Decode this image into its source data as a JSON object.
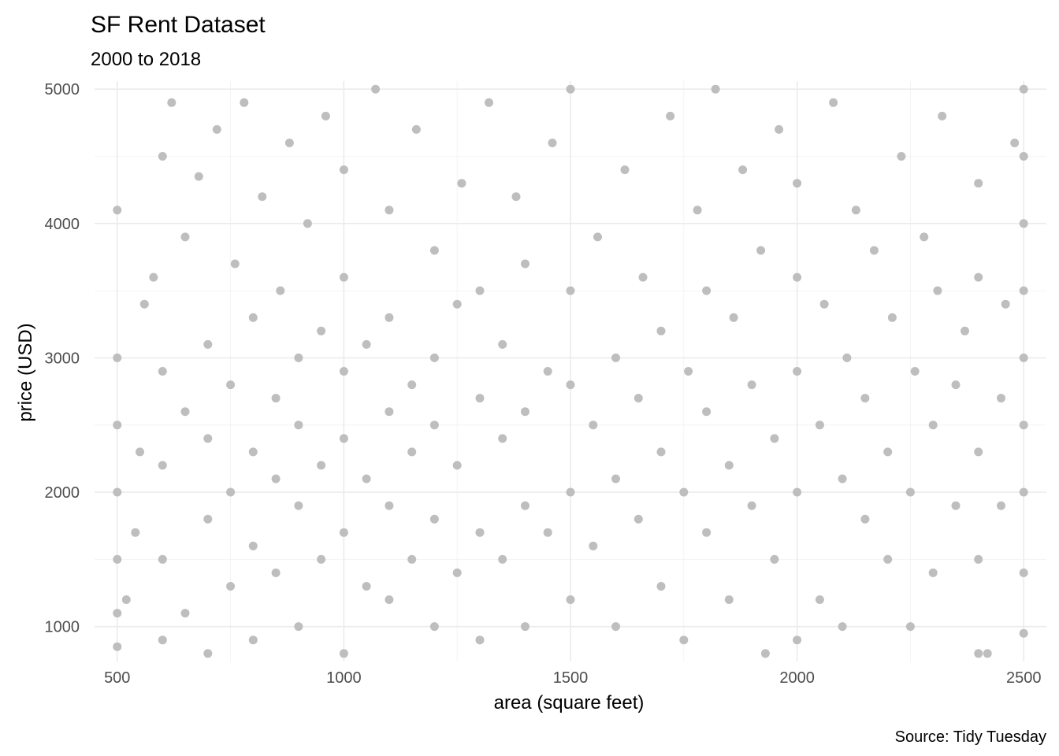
{
  "chart_data": {
    "type": "scatter",
    "title": "SF Rent Dataset",
    "subtitle": "2000 to 2018",
    "xlabel": "area (square feet)",
    "ylabel": "price (USD)",
    "caption": "Source: Tidy Tuesday",
    "xlim": [
      450,
      2550
    ],
    "ylim": [
      740,
      5060
    ],
    "x_ticks": [
      500,
      1000,
      1500,
      2000,
      2500
    ],
    "x_tick_labels": [
      "500",
      "1000",
      "1500",
      "2000",
      "2500"
    ],
    "y_ticks": [
      1000,
      2000,
      3000,
      4000,
      5000
    ],
    "y_tick_labels": [
      "1000",
      "2000",
      "3000",
      "4000",
      "5000"
    ],
    "grid": true,
    "legend": "none",
    "point_color": "#bebebe",
    "series": [
      {
        "values": [
          [
            500,
            850
          ],
          [
            500,
            1100
          ],
          [
            500,
            1500
          ],
          [
            500,
            2000
          ],
          [
            500,
            2500
          ],
          [
            500,
            3000
          ],
          [
            500,
            4100
          ],
          [
            520,
            1200
          ],
          [
            540,
            1700
          ],
          [
            550,
            2300
          ],
          [
            560,
            3400
          ],
          [
            580,
            3600
          ],
          [
            600,
            900
          ],
          [
            600,
            1500
          ],
          [
            600,
            2200
          ],
          [
            600,
            2900
          ],
          [
            600,
            4500
          ],
          [
            620,
            4900
          ],
          [
            650,
            1100
          ],
          [
            650,
            2600
          ],
          [
            650,
            3900
          ],
          [
            680,
            4350
          ],
          [
            700,
            800
          ],
          [
            700,
            1800
          ],
          [
            700,
            2400
          ],
          [
            700,
            3100
          ],
          [
            720,
            4700
          ],
          [
            750,
            1300
          ],
          [
            750,
            2000
          ],
          [
            750,
            2800
          ],
          [
            760,
            3700
          ],
          [
            780,
            4900
          ],
          [
            800,
            900
          ],
          [
            800,
            1600
          ],
          [
            800,
            2300
          ],
          [
            800,
            3300
          ],
          [
            820,
            4200
          ],
          [
            850,
            1400
          ],
          [
            850,
            2100
          ],
          [
            850,
            2700
          ],
          [
            860,
            3500
          ],
          [
            880,
            4600
          ],
          [
            900,
            1000
          ],
          [
            900,
            1900
          ],
          [
            900,
            2500
          ],
          [
            900,
            3000
          ],
          [
            920,
            4000
          ],
          [
            950,
            1500
          ],
          [
            950,
            2200
          ],
          [
            950,
            3200
          ],
          [
            960,
            4800
          ],
          [
            1000,
            800
          ],
          [
            1000,
            1700
          ],
          [
            1000,
            2400
          ],
          [
            1000,
            2900
          ],
          [
            1000,
            3600
          ],
          [
            1000,
            4400
          ],
          [
            1050,
            1300
          ],
          [
            1050,
            2100
          ],
          [
            1050,
            3100
          ],
          [
            1070,
            5000
          ],
          [
            1100,
            1200
          ],
          [
            1100,
            1900
          ],
          [
            1100,
            2600
          ],
          [
            1100,
            3300
          ],
          [
            1100,
            4100
          ],
          [
            1150,
            1500
          ],
          [
            1150,
            2300
          ],
          [
            1150,
            2800
          ],
          [
            1160,
            4700
          ],
          [
            1200,
            1000
          ],
          [
            1200,
            1800
          ],
          [
            1200,
            2500
          ],
          [
            1200,
            3000
          ],
          [
            1200,
            3800
          ],
          [
            1250,
            1400
          ],
          [
            1250,
            2200
          ],
          [
            1250,
            3400
          ],
          [
            1260,
            4300
          ],
          [
            1300,
            900
          ],
          [
            1300,
            1700
          ],
          [
            1300,
            2700
          ],
          [
            1300,
            3500
          ],
          [
            1320,
            4900
          ],
          [
            1350,
            1500
          ],
          [
            1350,
            2400
          ],
          [
            1350,
            3100
          ],
          [
            1380,
            4200
          ],
          [
            1400,
            1000
          ],
          [
            1400,
            1900
          ],
          [
            1400,
            2600
          ],
          [
            1400,
            3700
          ],
          [
            1450,
            1700
          ],
          [
            1450,
            2900
          ],
          [
            1460,
            4600
          ],
          [
            1500,
            1200
          ],
          [
            1500,
            2000
          ],
          [
            1500,
            2800
          ],
          [
            1500,
            3500
          ],
          [
            1500,
            5000
          ],
          [
            1550,
            1600
          ],
          [
            1550,
            2500
          ],
          [
            1560,
            3900
          ],
          [
            1600,
            1000
          ],
          [
            1600,
            2100
          ],
          [
            1600,
            3000
          ],
          [
            1620,
            4400
          ],
          [
            1650,
            1800
          ],
          [
            1650,
            2700
          ],
          [
            1660,
            3600
          ],
          [
            1700,
            1300
          ],
          [
            1700,
            2300
          ],
          [
            1700,
            3200
          ],
          [
            1720,
            4800
          ],
          [
            1750,
            900
          ],
          [
            1750,
            2000
          ],
          [
            1760,
            2900
          ],
          [
            1780,
            4100
          ],
          [
            1800,
            1700
          ],
          [
            1800,
            2600
          ],
          [
            1800,
            3500
          ],
          [
            1820,
            5000
          ],
          [
            1850,
            1200
          ],
          [
            1850,
            2200
          ],
          [
            1860,
            3300
          ],
          [
            1880,
            4400
          ],
          [
            1900,
            1900
          ],
          [
            1900,
            2800
          ],
          [
            1920,
            3800
          ],
          [
            1930,
            800
          ],
          [
            1950,
            1500
          ],
          [
            1950,
            2400
          ],
          [
            1960,
            4700
          ],
          [
            2000,
            900
          ],
          [
            2000,
            2000
          ],
          [
            2000,
            2900
          ],
          [
            2000,
            3600
          ],
          [
            2000,
            4300
          ],
          [
            2050,
            1200
          ],
          [
            2050,
            2500
          ],
          [
            2060,
            3400
          ],
          [
            2080,
            4900
          ],
          [
            2100,
            1000
          ],
          [
            2100,
            2100
          ],
          [
            2110,
            3000
          ],
          [
            2130,
            4100
          ],
          [
            2150,
            1800
          ],
          [
            2150,
            2700
          ],
          [
            2170,
            3800
          ],
          [
            2200,
            1500
          ],
          [
            2200,
            2300
          ],
          [
            2210,
            3300
          ],
          [
            2230,
            4500
          ],
          [
            2250,
            1000
          ],
          [
            2250,
            2000
          ],
          [
            2260,
            2900
          ],
          [
            2280,
            3900
          ],
          [
            2300,
            1400
          ],
          [
            2300,
            2500
          ],
          [
            2310,
            3500
          ],
          [
            2320,
            4800
          ],
          [
            2350,
            1900
          ],
          [
            2350,
            2800
          ],
          [
            2370,
            3200
          ],
          [
            2400,
            800
          ],
          [
            2400,
            1500
          ],
          [
            2400,
            2300
          ],
          [
            2400,
            3600
          ],
          [
            2400,
            4300
          ],
          [
            2420,
            800
          ],
          [
            2450,
            1900
          ],
          [
            2450,
            2700
          ],
          [
            2460,
            3400
          ],
          [
            2480,
            4600
          ],
          [
            2500,
            950
          ],
          [
            2500,
            1400
          ],
          [
            2500,
            2000
          ],
          [
            2500,
            2500
          ],
          [
            2500,
            3000
          ],
          [
            2500,
            3500
          ],
          [
            2500,
            4000
          ],
          [
            2500,
            4500
          ],
          [
            2500,
            5000
          ]
        ]
      }
    ]
  }
}
